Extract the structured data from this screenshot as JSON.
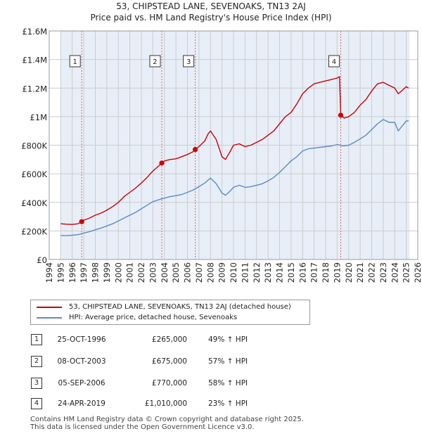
{
  "title_line1": "53, CHIPSTEAD LANE, SEVENOAKS, TN13 2AJ",
  "title_line2": "Price paid vs. HM Land Registry's House Price Index (HPI)",
  "legend": {
    "red_label": "53, CHIPSTEAD LANE, SEVENOAKS, TN13 2AJ (detached house)",
    "blue_label": "HPI: Average price, detached house, Sevenoaks"
  },
  "colors": {
    "red": "#cc0000",
    "blue": "#5b8ac6",
    "shade": "#e7eef8",
    "grid": "#cccccc",
    "vline": "#dd6666"
  },
  "transactions": [
    {
      "num": "1",
      "date": "25-OCT-1996",
      "price": "£265,000",
      "hpi": "49% ↑ HPI"
    },
    {
      "num": "2",
      "date": "08-OCT-2003",
      "price": "£675,000",
      "hpi": "57% ↑ HPI"
    },
    {
      "num": "3",
      "date": "05-SEP-2006",
      "price": "£770,000",
      "hpi": "58% ↑ HPI"
    },
    {
      "num": "4",
      "date": "24-APR-2019",
      "price": "£1,010,000",
      "hpi": "23% ↑ HPI"
    }
  ],
  "footer_line1": "Contains HM Land Registry data © Crown copyright and database right 2025.",
  "footer_line2": "This data is licensed under the Open Government Licence v3.0.",
  "chart_data": {
    "type": "line",
    "xlim": [
      1994,
      2026
    ],
    "ylim": [
      0,
      1600000
    ],
    "y_ticks": [
      0,
      200000,
      400000,
      600000,
      800000,
      1000000,
      1200000,
      1400000,
      1600000
    ],
    "y_tick_labels": [
      "£0",
      "£200K",
      "£400K",
      "£600K",
      "£800K",
      "£1M",
      "£1.2M",
      "£1.4M",
      "£1.6M"
    ],
    "x_ticks": [
      1994,
      1995,
      1996,
      1997,
      1998,
      1999,
      2000,
      2001,
      2002,
      2003,
      2004,
      2005,
      2006,
      2007,
      2008,
      2009,
      2010,
      2011,
      2012,
      2013,
      2014,
      2015,
      2016,
      2017,
      2018,
      2019,
      2020,
      2021,
      2022,
      2023,
      2024,
      2025,
      2026
    ],
    "x_tick_labels": [
      "1994",
      "1995",
      "1996",
      "1997",
      "1998",
      "1999",
      "2000",
      "2001",
      "2002",
      "2003",
      "2004",
      "2005",
      "2006",
      "2007",
      "2008",
      "2009",
      "2010",
      "2011",
      "2012",
      "2013",
      "2014",
      "2015",
      "2016",
      "2017",
      "2018",
      "2019",
      "2020",
      "2021",
      "2022",
      "2023",
      "2024",
      "2025",
      "2026"
    ],
    "data_range": [
      1995,
      2025.3
    ],
    "sale_points": [
      {
        "num": "1",
        "x": 1996.82,
        "y": 265000
      },
      {
        "num": "2",
        "x": 2003.77,
        "y": 675000
      },
      {
        "num": "3",
        "x": 2006.68,
        "y": 770000
      },
      {
        "num": "4",
        "x": 2019.31,
        "y": 1010000
      }
    ],
    "series": [
      {
        "name": "53, CHIPSTEAD LANE, SEVENOAKS, TN13 2AJ (detached house)",
        "x": [
          1995,
          1995.5,
          1996,
          1996.5,
          1996.82,
          1997,
          1997.5,
          1998,
          1998.5,
          1999,
          1999.5,
          2000,
          2000.5,
          2001,
          2001.5,
          2002,
          2002.5,
          2003,
          2003.5,
          2003.77,
          2004,
          2004.5,
          2005,
          2005.5,
          2006,
          2006.5,
          2006.68,
          2007,
          2007.5,
          2007.8,
          2008,
          2008.5,
          2009,
          2009.3,
          2009.6,
          2010,
          2010.5,
          2011,
          2011.5,
          2012,
          2012.5,
          2013,
          2013.5,
          2014,
          2014.5,
          2015,
          2015.5,
          2016,
          2016.5,
          2017,
          2017.5,
          2018,
          2018.5,
          2019,
          2019.2,
          2019.31,
          2019.6,
          2020,
          2020.5,
          2021,
          2021.5,
          2022,
          2022.5,
          2023,
          2023.5,
          2024,
          2024.3,
          2024.6,
          2025,
          2025.2
        ],
        "values": [
          250000,
          247000,
          245000,
          250000,
          265000,
          275000,
          290000,
          310000,
          325000,
          345000,
          370000,
          400000,
          440000,
          470000,
          500000,
          535000,
          575000,
          620000,
          655000,
          675000,
          690000,
          700000,
          705000,
          720000,
          735000,
          755000,
          770000,
          790000,
          830000,
          880000,
          900000,
          840000,
          720000,
          700000,
          740000,
          800000,
          810000,
          790000,
          800000,
          820000,
          840000,
          870000,
          900000,
          950000,
          1000000,
          1030000,
          1090000,
          1160000,
          1200000,
          1230000,
          1240000,
          1250000,
          1260000,
          1270000,
          1280000,
          1010000,
          990000,
          1000000,
          1030000,
          1080000,
          1120000,
          1180000,
          1230000,
          1240000,
          1220000,
          1200000,
          1160000,
          1180000,
          1210000,
          1200000
        ]
      },
      {
        "name": "HPI: Average price, detached house, Sevenoaks",
        "x": [
          1995,
          1995.5,
          1996,
          1996.5,
          1997,
          1997.5,
          1998,
          1998.5,
          1999,
          1999.5,
          2000,
          2000.5,
          2001,
          2001.5,
          2002,
          2002.5,
          2003,
          2003.5,
          2004,
          2004.5,
          2005,
          2005.5,
          2006,
          2006.5,
          2007,
          2007.5,
          2008,
          2008.5,
          2009,
          2009.3,
          2009.6,
          2010,
          2010.5,
          2011,
          2011.5,
          2012,
          2012.5,
          2013,
          2013.5,
          2014,
          2014.5,
          2015,
          2015.5,
          2016,
          2016.5,
          2017,
          2017.5,
          2018,
          2018.5,
          2019,
          2019.5,
          2020,
          2020.5,
          2021,
          2021.5,
          2022,
          2022.5,
          2023,
          2023.5,
          2024,
          2024.3,
          2024.6,
          2025,
          2025.2
        ],
        "values": [
          168000,
          167000,
          170000,
          174000,
          185000,
          195000,
          208000,
          220000,
          235000,
          250000,
          270000,
          290000,
          310000,
          330000,
          355000,
          380000,
          405000,
          418000,
          430000,
          440000,
          447000,
          455000,
          470000,
          487000,
          510000,
          535000,
          570000,
          530000,
          465000,
          450000,
          470000,
          505000,
          520000,
          505000,
          510000,
          520000,
          530000,
          550000,
          575000,
          610000,
          650000,
          690000,
          720000,
          760000,
          775000,
          780000,
          785000,
          790000,
          795000,
          805000,
          795000,
          800000,
          820000,
          845000,
          870000,
          910000,
          950000,
          980000,
          960000,
          960000,
          900000,
          930000,
          970000,
          970000
        ]
      }
    ]
  }
}
